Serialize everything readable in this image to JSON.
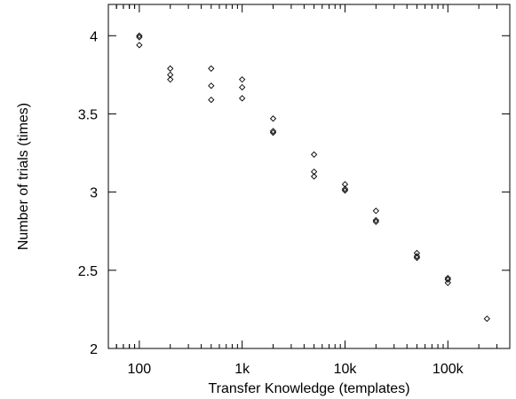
{
  "chart_data": {
    "type": "scatter",
    "title": "",
    "xlabel": "Transfer Knowledge (templates)",
    "ylabel": "Number of trials (times)",
    "xscale": "log",
    "xlim": [
      50,
      400000
    ],
    "ylim": [
      2,
      4.2
    ],
    "grid": false,
    "legend": "none",
    "marker": "diamond",
    "marker_color": "#000000",
    "xticks": [
      {
        "value": 100,
        "label": "100"
      },
      {
        "value": 1000,
        "label": "1k"
      },
      {
        "value": 10000,
        "label": "10k"
      },
      {
        "value": 100000,
        "label": "100k"
      }
    ],
    "yticks": [
      {
        "value": 2,
        "label": "2"
      },
      {
        "value": 2.5,
        "label": "2.5"
      },
      {
        "value": 3,
        "label": "3"
      },
      {
        "value": 3.5,
        "label": "3.5"
      },
      {
        "value": 4,
        "label": "4"
      }
    ],
    "points": [
      {
        "x": 100,
        "y": 4.0
      },
      {
        "x": 100,
        "y": 3.99
      },
      {
        "x": 100,
        "y": 3.94
      },
      {
        "x": 200,
        "y": 3.79
      },
      {
        "x": 200,
        "y": 3.75
      },
      {
        "x": 200,
        "y": 3.72
      },
      {
        "x": 500,
        "y": 3.79
      },
      {
        "x": 500,
        "y": 3.68
      },
      {
        "x": 500,
        "y": 3.59
      },
      {
        "x": 1000,
        "y": 3.72
      },
      {
        "x": 1000,
        "y": 3.67
      },
      {
        "x": 1000,
        "y": 3.6
      },
      {
        "x": 2000,
        "y": 3.47
      },
      {
        "x": 2000,
        "y": 3.39
      },
      {
        "x": 2000,
        "y": 3.38
      },
      {
        "x": 5000,
        "y": 3.24
      },
      {
        "x": 5000,
        "y": 3.13
      },
      {
        "x": 5000,
        "y": 3.1
      },
      {
        "x": 10000,
        "y": 3.05
      },
      {
        "x": 10000,
        "y": 3.02
      },
      {
        "x": 10000,
        "y": 3.01
      },
      {
        "x": 20000,
        "y": 2.88
      },
      {
        "x": 20000,
        "y": 2.82
      },
      {
        "x": 20000,
        "y": 2.81
      },
      {
        "x": 50000,
        "y": 2.61
      },
      {
        "x": 50000,
        "y": 2.59
      },
      {
        "x": 50000,
        "y": 2.58
      },
      {
        "x": 100000,
        "y": 2.45
      },
      {
        "x": 100000,
        "y": 2.44
      },
      {
        "x": 100000,
        "y": 2.42
      },
      {
        "x": 240000,
        "y": 2.19
      }
    ]
  }
}
